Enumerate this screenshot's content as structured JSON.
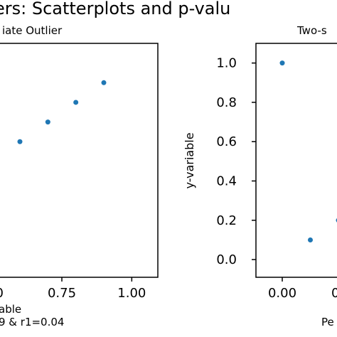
{
  "figure": {
    "suptitle": "ers: Scatterplots and p-valu"
  },
  "colors": {
    "marker": "#1f77b4",
    "axis": "#000000",
    "background": "#ffffff"
  },
  "chart_data": [
    {
      "type": "scatter",
      "title": "iate Outlier",
      "xlabel": "able",
      "caption": "9 & r1=0.04",
      "ylabel": "",
      "xlim": [
        0.5,
        1.1
      ],
      "ylim": [
        -0.09,
        1.1
      ],
      "xticks": [
        0.75,
        1.0
      ],
      "xtick_labels": [
        "0.75",
        "1.00"
      ],
      "partial_xtick_labels": [
        {
          "x": 0.5,
          "label": "0"
        }
      ],
      "yticks": [],
      "points": [
        {
          "x": 0.6,
          "y": 0.6
        },
        {
          "x": 0.7,
          "y": 0.7
        },
        {
          "x": 0.8,
          "y": 0.8
        },
        {
          "x": 0.9,
          "y": 0.9
        }
      ],
      "grid": false
    },
    {
      "type": "scatter",
      "title": "Two-s",
      "xlabel": "Pe",
      "ylabel": "y-variable",
      "xlim": [
        -0.1,
        0.24
      ],
      "ylim": [
        -0.09,
        1.1
      ],
      "xticks": [
        0.0
      ],
      "xtick_labels": [
        "0.00"
      ],
      "partial_xtick_labels": [
        {
          "x": 0.2,
          "label": "0"
        }
      ],
      "yticks": [
        0.0,
        0.2,
        0.4,
        0.6,
        0.8,
        1.0
      ],
      "ytick_labels": [
        "0.0",
        "0.2",
        "0.4",
        "0.6",
        "0.8",
        "1.0"
      ],
      "points": [
        {
          "x": 0.0,
          "y": 1.0
        },
        {
          "x": 0.1,
          "y": 0.1
        },
        {
          "x": 0.2,
          "y": 0.2
        }
      ],
      "grid": false
    }
  ]
}
